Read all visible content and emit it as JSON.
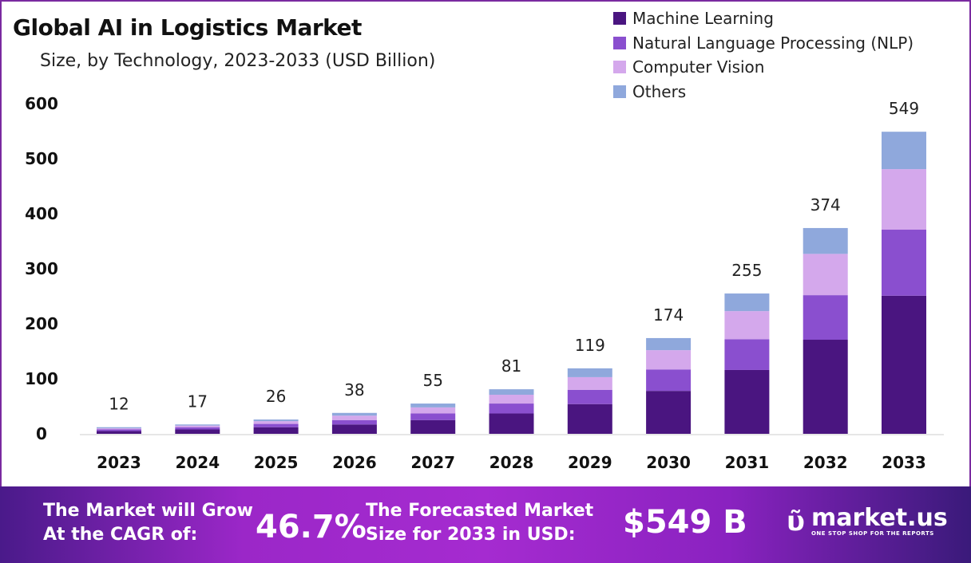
{
  "chart_data": {
    "type": "bar",
    "stacked": true,
    "title": "Global AI in Logistics Market",
    "subtitle": "Size, by Technology, 2023-2033 (USD Billion)",
    "categories": [
      "2023",
      "2024",
      "2025",
      "2026",
      "2027",
      "2028",
      "2029",
      "2030",
      "2031",
      "2032",
      "2033"
    ],
    "series": [
      {
        "name": "Machine Learning",
        "color": "#4a1580",
        "values": [
          5,
          8,
          12,
          17,
          25,
          37,
          54,
          78,
          116,
          171,
          251
        ]
      },
      {
        "name": "Natural Language Processing (NLP)",
        "color": "#8a4fcf",
        "values": [
          3,
          4,
          6,
          8,
          12,
          18,
          26,
          39,
          56,
          81,
          120
        ]
      },
      {
        "name": "Computer Vision",
        "color": "#d4a8ec",
        "values": [
          2,
          3,
          5,
          8,
          11,
          16,
          23,
          35,
          51,
          75,
          110
        ]
      },
      {
        "name": "Others",
        "color": "#8fa8dc",
        "values": [
          2,
          2,
          3,
          5,
          7,
          10,
          16,
          22,
          32,
          47,
          68
        ]
      }
    ],
    "totals": [
      "12",
      "17",
      "26",
      "38",
      "55",
      "81",
      "119",
      "174",
      "255",
      "374",
      "549"
    ],
    "y_ticks": [
      "0",
      "100",
      "200",
      "300",
      "400",
      "500",
      "600"
    ],
    "ylim": [
      0,
      600
    ],
    "grid": false,
    "legend_position": "top-right"
  },
  "footer": {
    "cagr_label_1": "The Market will Grow",
    "cagr_label_2": "At the CAGR of:",
    "cagr_value": "46.7%",
    "forecast_label_1": "The Forecasted Market",
    "forecast_label_2": "Size for 2033 in USD:",
    "forecast_value": "$549 B",
    "logo_name": "market.us",
    "logo_tagline": "ONE STOP SHOP FOR THE REPORTS"
  }
}
